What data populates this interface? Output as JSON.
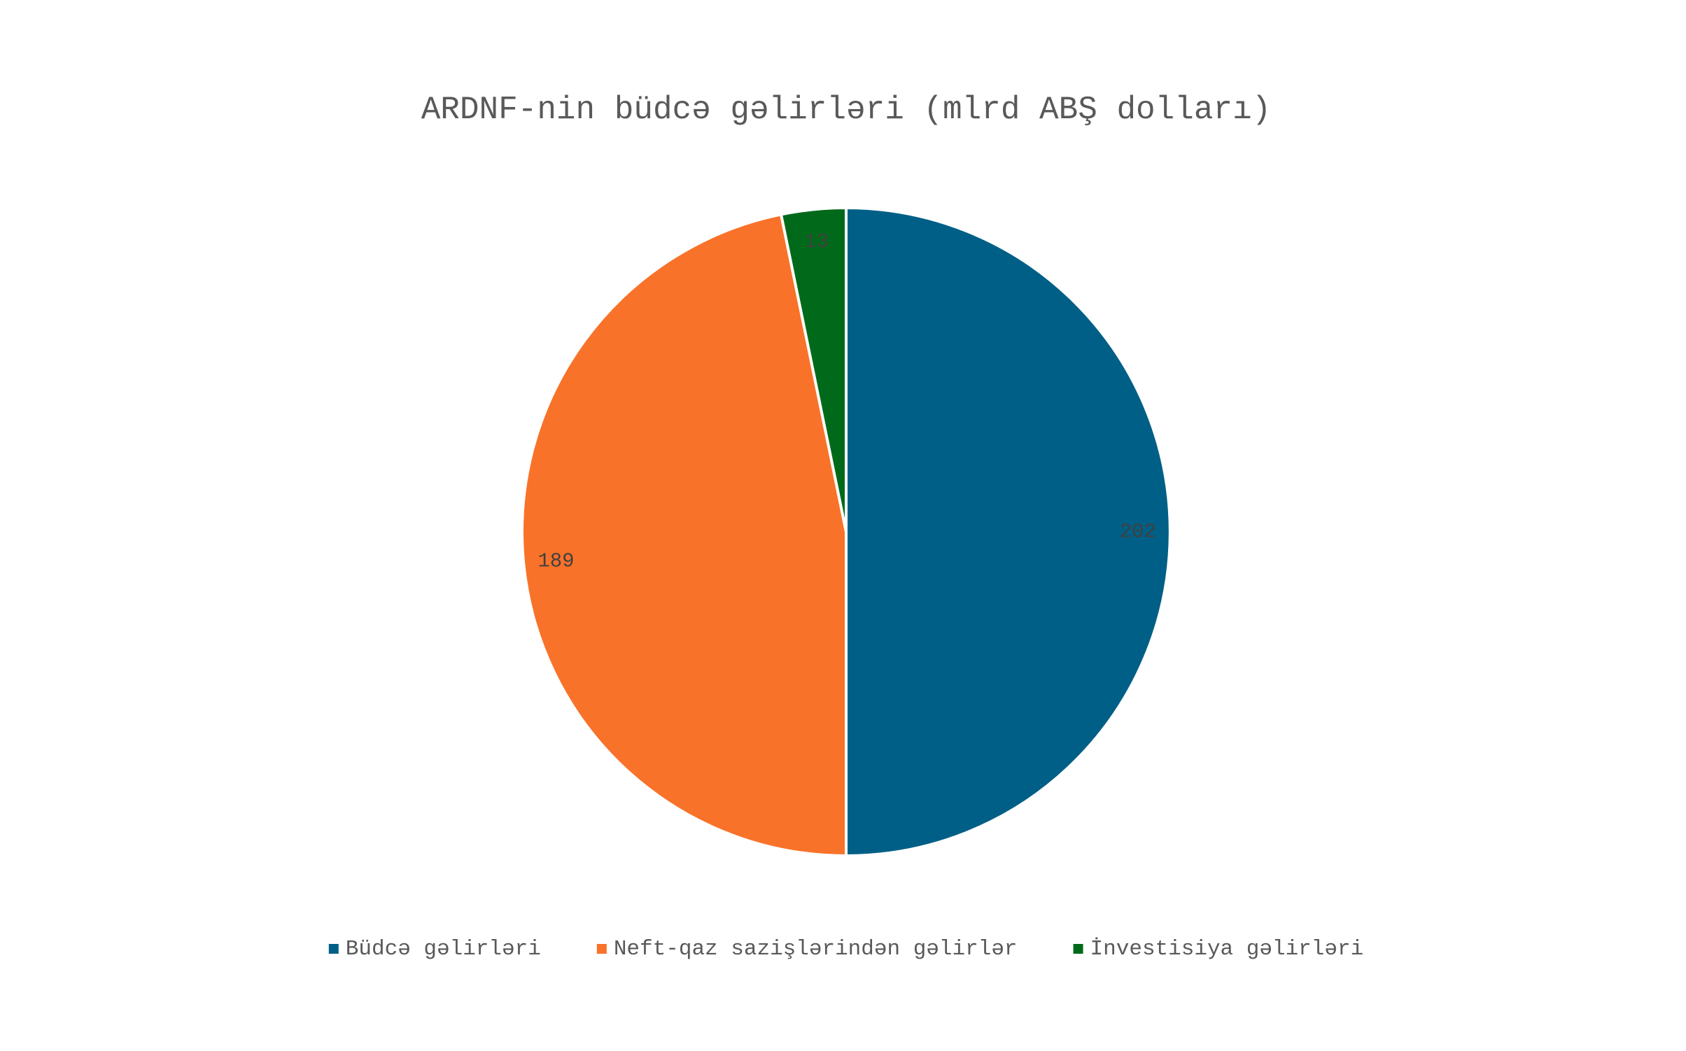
{
  "chart_data": {
    "type": "pie",
    "title": "ARDNF-nin büdcə gəlirləri (mlrd ABŞ dolları)",
    "categories": [
      "Büdcə gəlirləri",
      "Neft-qaz sazişlərindən gəlirlər",
      "İnvestisiya gəlirləri"
    ],
    "values": [
      202,
      189,
      13
    ],
    "colors": [
      "#005f86",
      "#f97229",
      "#006a1a"
    ],
    "legend": "bottom"
  }
}
